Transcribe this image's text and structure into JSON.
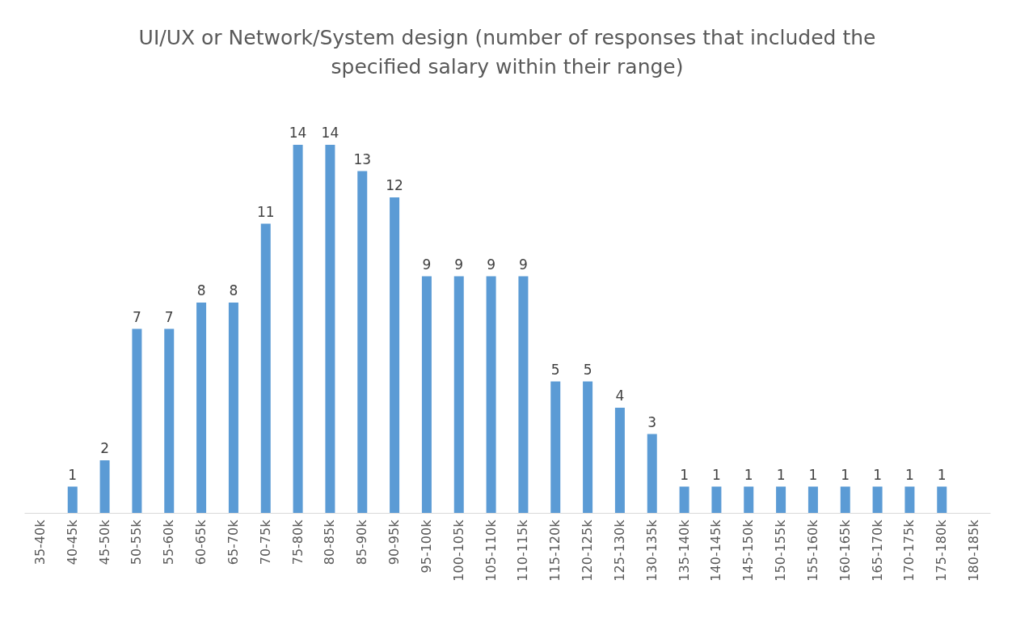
{
  "chart_data": {
    "type": "bar",
    "title": "UI/UX or Network/System design (number of responses that included the specified salary within their range)",
    "categories": [
      "35-40k",
      "40-45k",
      "45-50k",
      "50-55k",
      "55-60k",
      "60-65k",
      "65-70k",
      "70-75k",
      "75-80k",
      "80-85k",
      "85-90k",
      "90-95k",
      "95-100k",
      "100-105k",
      "105-110k",
      "110-115k",
      "115-120k",
      "120-125k",
      "125-130k",
      "130-135k",
      "135-140k",
      "140-145k",
      "145-150k",
      "150-155k",
      "155-160k",
      "160-165k",
      "165-170k",
      "170-175k",
      "175-180k",
      "180-185k"
    ],
    "values": [
      0,
      1,
      2,
      7,
      7,
      8,
      8,
      11,
      14,
      14,
      13,
      12,
      9,
      9,
      9,
      9,
      5,
      5,
      4,
      3,
      1,
      1,
      1,
      1,
      1,
      1,
      1,
      1,
      1,
      0
    ],
    "value_labels": [
      null,
      "1",
      "2",
      "7",
      "7",
      "8",
      "8",
      "11",
      "14",
      "14",
      "13",
      "12",
      "9",
      "9",
      "9",
      "9",
      "5",
      "5",
      "4",
      "3",
      "1",
      "1",
      "1",
      "1",
      "1",
      "1",
      "1",
      "1",
      "1",
      null
    ],
    "color": "#5b9bd5"
  }
}
